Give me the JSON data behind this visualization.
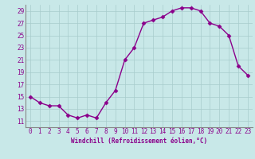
{
  "x": [
    0,
    1,
    2,
    3,
    4,
    5,
    6,
    7,
    8,
    9,
    10,
    11,
    12,
    13,
    14,
    15,
    16,
    17,
    18,
    19,
    20,
    21,
    22,
    23
  ],
  "y": [
    15,
    14,
    13.5,
    13.5,
    12,
    11.5,
    12,
    11.5,
    14,
    16,
    21,
    23,
    27,
    27.5,
    28,
    29,
    29.5,
    29.5,
    29,
    27,
    26.5,
    25,
    20,
    18.5
  ],
  "line_color": "#8B008B",
  "marker": "D",
  "marker_size": 2.5,
  "bg_color": "#C8E8E8",
  "grid_color": "#A8CCCC",
  "xlabel": "Windchill (Refroidissement éolien,°C)",
  "ylim": [
    10,
    30
  ],
  "xlim": [
    -0.5,
    23.5
  ],
  "yticks": [
    11,
    13,
    15,
    17,
    19,
    21,
    23,
    25,
    27,
    29
  ],
  "xticks": [
    0,
    1,
    2,
    3,
    4,
    5,
    6,
    7,
    8,
    9,
    10,
    11,
    12,
    13,
    14,
    15,
    16,
    17,
    18,
    19,
    20,
    21,
    22,
    23
  ],
  "tick_color": "#8B008B",
  "label_fontsize": 5.5,
  "tick_fontsize": 5.5,
  "spine_color": "#888888",
  "linewidth": 1.0
}
